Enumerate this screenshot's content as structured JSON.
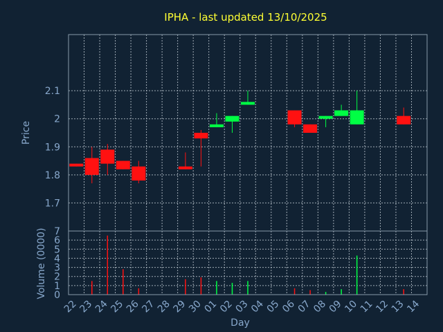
{
  "chart_data": [
    {
      "type": "candlestick",
      "title": "IPHA - last updated 13/10/2025",
      "xlabel": "Day",
      "ylabel": "Price",
      "ylim": [
        1.6,
        2.3
      ],
      "yticks": [
        "1.7",
        "1.8",
        "1.9",
        "2",
        "2.1"
      ],
      "grid": true,
      "up_color": "#00ff44",
      "down_color": "#ff1111",
      "categories": [
        "22",
        "23",
        "24",
        "25",
        "26",
        "27",
        "28",
        "29",
        "30",
        "01",
        "02",
        "03",
        "04",
        "05",
        "06",
        "07",
        "08",
        "09",
        "10",
        "11",
        "12",
        "13",
        "14"
      ],
      "candles": [
        {
          "day": "22",
          "open": 1.84,
          "close": 1.83,
          "high": 1.84,
          "low": 1.83
        },
        {
          "day": "23",
          "open": 1.86,
          "close": 1.8,
          "high": 1.9,
          "low": 1.77
        },
        {
          "day": "24",
          "open": 1.89,
          "close": 1.84,
          "high": 1.91,
          "low": 1.8
        },
        {
          "day": "25",
          "open": 1.85,
          "close": 1.82,
          "high": 1.85,
          "low": 1.82
        },
        {
          "day": "26",
          "open": 1.83,
          "close": 1.78,
          "high": 1.85,
          "low": 1.77
        },
        {
          "day": "29",
          "open": 1.83,
          "close": 1.82,
          "high": 1.88,
          "low": 1.82
        },
        {
          "day": "30",
          "open": 1.95,
          "close": 1.93,
          "high": 1.96,
          "low": 1.83
        },
        {
          "day": "01",
          "open": 1.97,
          "close": 1.98,
          "high": 2.02,
          "low": 1.97
        },
        {
          "day": "02",
          "open": 1.99,
          "close": 2.01,
          "high": 2.01,
          "low": 1.95
        },
        {
          "day": "03",
          "open": 2.05,
          "close": 2.06,
          "high": 2.1,
          "low": 2.05
        },
        {
          "day": "06",
          "open": 2.03,
          "close": 1.98,
          "high": 2.03,
          "low": 1.97
        },
        {
          "day": "07",
          "open": 1.98,
          "close": 1.95,
          "high": 1.98,
          "low": 1.95
        },
        {
          "day": "08",
          "open": 2.0,
          "close": 2.01,
          "high": 2.01,
          "low": 1.97
        },
        {
          "day": "09",
          "open": 2.01,
          "close": 2.03,
          "high": 2.05,
          "low": 2.01
        },
        {
          "day": "10",
          "open": 1.98,
          "close": 2.03,
          "high": 2.1,
          "low": 1.98
        },
        {
          "day": "13",
          "open": 2.01,
          "close": 1.98,
          "high": 2.04,
          "low": 1.98
        }
      ]
    },
    {
      "type": "bar",
      "ylabel": "Volume (0000)",
      "ylim": [
        0,
        7
      ],
      "yticks": [
        "0",
        "1",
        "2",
        "3",
        "4",
        "5",
        "6",
        "7"
      ],
      "grid": true,
      "bars": [
        {
          "day": "23",
          "value": 1.5,
          "color": "#ff1111"
        },
        {
          "day": "24",
          "value": 6.5,
          "color": "#ff1111"
        },
        {
          "day": "25",
          "value": 2.8,
          "color": "#ff1111"
        },
        {
          "day": "26",
          "value": 0.7,
          "color": "#ff1111"
        },
        {
          "day": "29",
          "value": 1.7,
          "color": "#ff1111"
        },
        {
          "day": "30",
          "value": 1.9,
          "color": "#ff1111"
        },
        {
          "day": "01",
          "value": 1.5,
          "color": "#00ff44"
        },
        {
          "day": "02",
          "value": 1.3,
          "color": "#00ff44"
        },
        {
          "day": "03",
          "value": 1.5,
          "color": "#00ff44"
        },
        {
          "day": "06",
          "value": 0.7,
          "color": "#ff1111"
        },
        {
          "day": "07",
          "value": 0.5,
          "color": "#ff1111"
        },
        {
          "day": "08",
          "value": 0.3,
          "color": "#00ff44"
        },
        {
          "day": "09",
          "value": 0.6,
          "color": "#00ff44"
        },
        {
          "day": "10",
          "value": 4.3,
          "color": "#00ff44"
        },
        {
          "day": "13",
          "value": 0.6,
          "color": "#ff1111"
        }
      ]
    }
  ]
}
